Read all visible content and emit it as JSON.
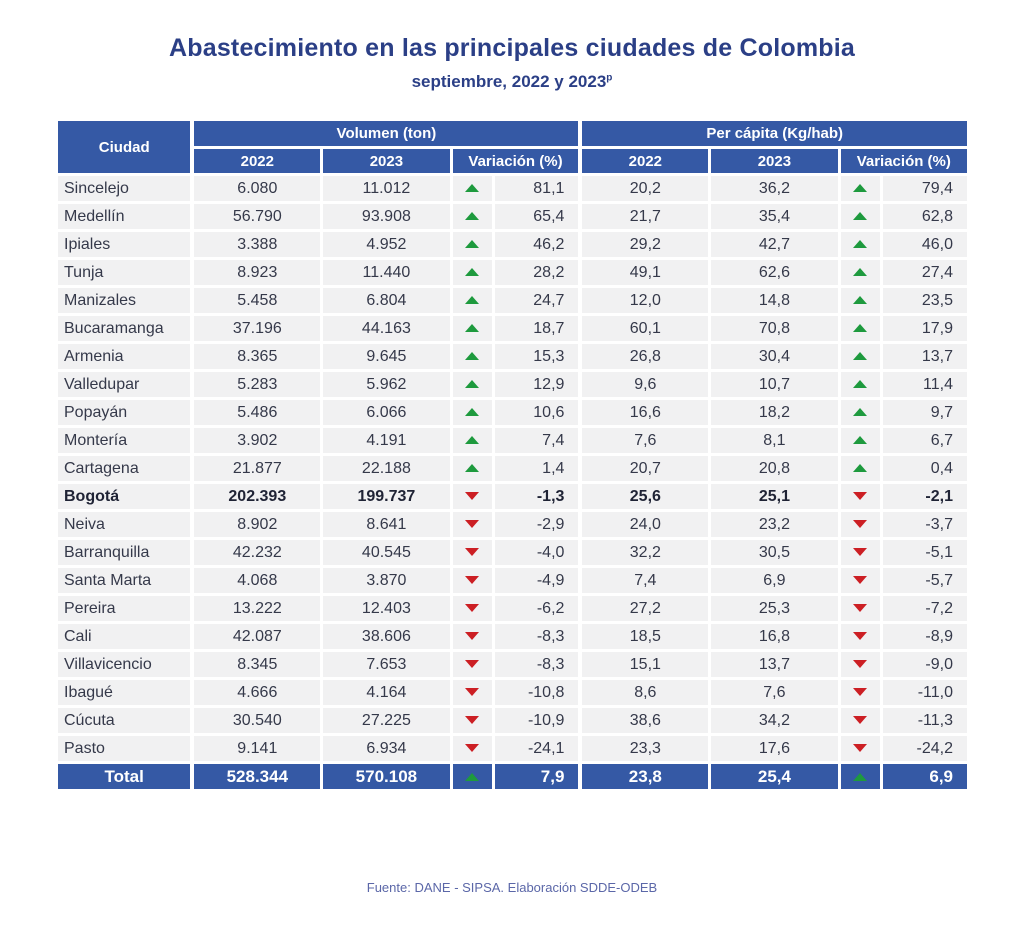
{
  "title": "Abastecimiento en las principales ciudades de Colombia",
  "subtitle": "septiembre, 2022 y 2023",
  "subtitle_sup": "p",
  "headers": {
    "city": "Ciudad",
    "volumen": "Volumen (ton)",
    "percapita": "Per cápita (Kg/hab)",
    "y2022": "2022",
    "y2023": "2023",
    "variacion": "Variación (%)"
  },
  "colors": {
    "header_bg": "#3559a5",
    "up": "#1e9a3e",
    "down": "#cc1f24",
    "row_bg": "#f1f1f2"
  },
  "rows": [
    {
      "city": "Sincelejo",
      "v2022": "6.080",
      "v2023": "11.012",
      "vdir": "up",
      "vvar": "81,1",
      "p2022": "20,2",
      "p2023": "36,2",
      "pdir": "up",
      "pvar": "79,4"
    },
    {
      "city": "Medellín",
      "v2022": "56.790",
      "v2023": "93.908",
      "vdir": "up",
      "vvar": "65,4",
      "p2022": "21,7",
      "p2023": "35,4",
      "pdir": "up",
      "pvar": "62,8"
    },
    {
      "city": "Ipiales",
      "v2022": "3.388",
      "v2023": "4.952",
      "vdir": "up",
      "vvar": "46,2",
      "p2022": "29,2",
      "p2023": "42,7",
      "pdir": "up",
      "pvar": "46,0"
    },
    {
      "city": "Tunja",
      "v2022": "8.923",
      "v2023": "11.440",
      "vdir": "up",
      "vvar": "28,2",
      "p2022": "49,1",
      "p2023": "62,6",
      "pdir": "up",
      "pvar": "27,4"
    },
    {
      "city": "Manizales",
      "v2022": "5.458",
      "v2023": "6.804",
      "vdir": "up",
      "vvar": "24,7",
      "p2022": "12,0",
      "p2023": "14,8",
      "pdir": "up",
      "pvar": "23,5"
    },
    {
      "city": "Bucaramanga",
      "v2022": "37.196",
      "v2023": "44.163",
      "vdir": "up",
      "vvar": "18,7",
      "p2022": "60,1",
      "p2023": "70,8",
      "pdir": "up",
      "pvar": "17,9"
    },
    {
      "city": "Armenia",
      "v2022": "8.365",
      "v2023": "9.645",
      "vdir": "up",
      "vvar": "15,3",
      "p2022": "26,8",
      "p2023": "30,4",
      "pdir": "up",
      "pvar": "13,7"
    },
    {
      "city": "Valledupar",
      "v2022": "5.283",
      "v2023": "5.962",
      "vdir": "up",
      "vvar": "12,9",
      "p2022": "9,6",
      "p2023": "10,7",
      "pdir": "up",
      "pvar": "11,4"
    },
    {
      "city": "Popayán",
      "v2022": "5.486",
      "v2023": "6.066",
      "vdir": "up",
      "vvar": "10,6",
      "p2022": "16,6",
      "p2023": "18,2",
      "pdir": "up",
      "pvar": "9,7"
    },
    {
      "city": "Montería",
      "v2022": "3.902",
      "v2023": "4.191",
      "vdir": "up",
      "vvar": "7,4",
      "p2022": "7,6",
      "p2023": "8,1",
      "pdir": "up",
      "pvar": "6,7"
    },
    {
      "city": "Cartagena",
      "v2022": "21.877",
      "v2023": "22.188",
      "vdir": "up",
      "vvar": "1,4",
      "p2022": "20,7",
      "p2023": "20,8",
      "pdir": "up",
      "pvar": "0,4"
    },
    {
      "city": "Bogotá",
      "v2022": "202.393",
      "v2023": "199.737",
      "vdir": "down",
      "vvar": "-1,3",
      "p2022": "25,6",
      "p2023": "25,1",
      "pdir": "down",
      "pvar": "-2,1",
      "bold": true
    },
    {
      "city": "Neiva",
      "v2022": "8.902",
      "v2023": "8.641",
      "vdir": "down",
      "vvar": "-2,9",
      "p2022": "24,0",
      "p2023": "23,2",
      "pdir": "down",
      "pvar": "-3,7"
    },
    {
      "city": "Barranquilla",
      "v2022": "42.232",
      "v2023": "40.545",
      "vdir": "down",
      "vvar": "-4,0",
      "p2022": "32,2",
      "p2023": "30,5",
      "pdir": "down",
      "pvar": "-5,1"
    },
    {
      "city": "Santa Marta",
      "v2022": "4.068",
      "v2023": "3.870",
      "vdir": "down",
      "vvar": "-4,9",
      "p2022": "7,4",
      "p2023": "6,9",
      "pdir": "down",
      "pvar": "-5,7"
    },
    {
      "city": "Pereira",
      "v2022": "13.222",
      "v2023": "12.403",
      "vdir": "down",
      "vvar": "-6,2",
      "p2022": "27,2",
      "p2023": "25,3",
      "pdir": "down",
      "pvar": "-7,2"
    },
    {
      "city": "Cali",
      "v2022": "42.087",
      "v2023": "38.606",
      "vdir": "down",
      "vvar": "-8,3",
      "p2022": "18,5",
      "p2023": "16,8",
      "pdir": "down",
      "pvar": "-8,9"
    },
    {
      "city": "Villavicencio",
      "v2022": "8.345",
      "v2023": "7.653",
      "vdir": "down",
      "vvar": "-8,3",
      "p2022": "15,1",
      "p2023": "13,7",
      "pdir": "down",
      "pvar": "-9,0"
    },
    {
      "city": "Ibagué",
      "v2022": "4.666",
      "v2023": "4.164",
      "vdir": "down",
      "vvar": "-10,8",
      "p2022": "8,6",
      "p2023": "7,6",
      "pdir": "down",
      "pvar": "-11,0"
    },
    {
      "city": "Cúcuta",
      "v2022": "30.540",
      "v2023": "27.225",
      "vdir": "down",
      "vvar": "-10,9",
      "p2022": "38,6",
      "p2023": "34,2",
      "pdir": "down",
      "pvar": "-11,3"
    },
    {
      "city": "Pasto",
      "v2022": "9.141",
      "v2023": "6.934",
      "vdir": "down",
      "vvar": "-24,1",
      "p2022": "23,3",
      "p2023": "17,6",
      "pdir": "down",
      "pvar": "-24,2"
    }
  ],
  "total": {
    "city": "Total",
    "v2022": "528.344",
    "v2023": "570.108",
    "vdir": "up",
    "vvar": "7,9",
    "p2022": "23,8",
    "p2023": "25,4",
    "pdir": "up",
    "pvar": "6,9"
  },
  "source": "Fuente: DANE - SIPSA. Elaboración SDDE-ODEB"
}
